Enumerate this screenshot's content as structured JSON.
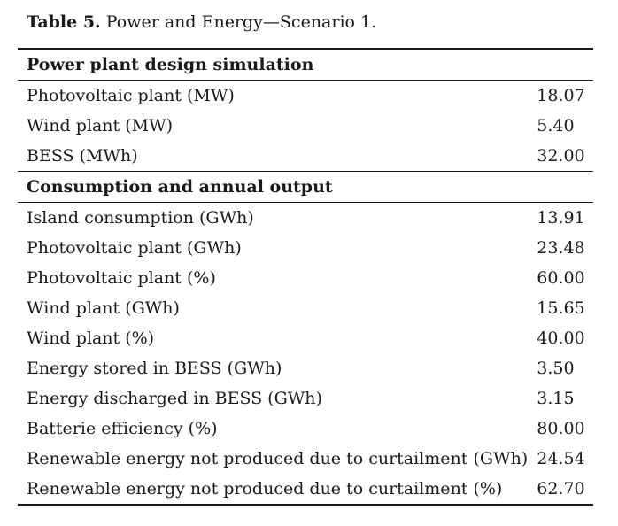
{
  "caption": {
    "label": "Table 5.",
    "text": "Power and Energy—Scenario 1."
  },
  "sections": [
    {
      "title": "Power plant design simulation",
      "rows": [
        {
          "label": "Photovoltaic plant (MW)",
          "value": "18.07"
        },
        {
          "label": "Wind plant (MW)",
          "value": "5.40"
        },
        {
          "label": "BESS (MWh)",
          "value": "32.00"
        }
      ]
    },
    {
      "title": "Consumption and annual output",
      "rows": [
        {
          "label": "Island consumption (GWh)",
          "value": "13.91"
        },
        {
          "label": "Photovoltaic plant (GWh)",
          "value": "23.48"
        },
        {
          "label": "Photovoltaic plant (%)",
          "value": "60.00"
        },
        {
          "label": "Wind plant (GWh)",
          "value": "15.65"
        },
        {
          "label": "Wind plant (%)",
          "value": "40.00"
        },
        {
          "label": "Energy stored in BESS (GWh)",
          "value": "3.50"
        },
        {
          "label": "Energy discharged in BESS (GWh)",
          "value": "3.15"
        },
        {
          "label": "Batterie efficiency (%)",
          "value": "80.00"
        },
        {
          "label": "Renewable energy not produced due to curtailment (GWh)",
          "value": "24.54"
        },
        {
          "label": "Renewable energy not produced due to curtailment (%)",
          "value": "62.70"
        }
      ]
    }
  ]
}
